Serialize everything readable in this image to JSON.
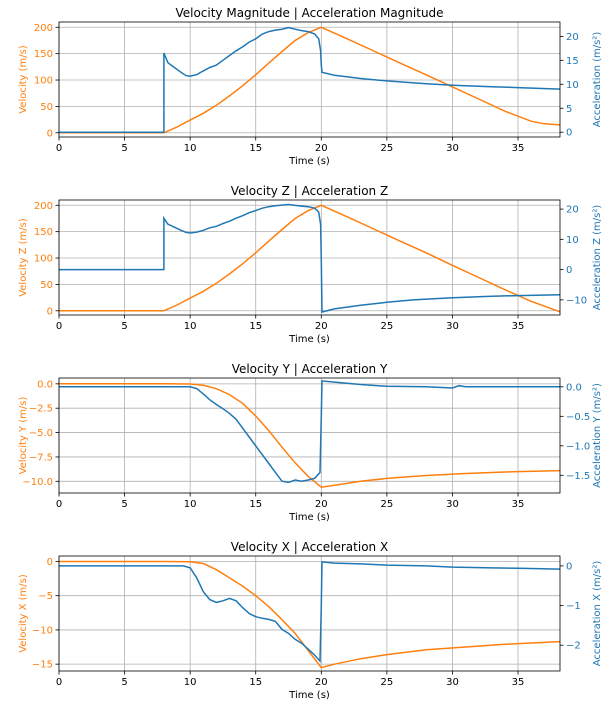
{
  "colors": {
    "velocity": "#ff7f0e",
    "acceleration": "#1f77b4",
    "grid": "#b0b0b0"
  },
  "chart_data": [
    {
      "type": "line",
      "title": "Velocity Magnitude | Acceleration Magnitude",
      "xlabel": "Time (s)",
      "ylabel_left": "Velocity (m/s)",
      "ylabel_right": "Acceleration (m/s²)",
      "xlim": [
        0,
        38.2
      ],
      "ylim_left": [
        -8,
        210
      ],
      "ylim_right": [
        -1,
        23
      ],
      "xticks": [
        0,
        5,
        10,
        15,
        20,
        25,
        30,
        35
      ],
      "yticks_left": [
        0,
        50,
        100,
        150,
        200
      ],
      "yticks_right": [
        0,
        5,
        10,
        15,
        20
      ],
      "grid": true,
      "series": [
        {
          "axis": "left",
          "points": [
            [
              0,
              0
            ],
            [
              8,
              0
            ],
            [
              9,
              11
            ],
            [
              10,
              24
            ],
            [
              11,
              37
            ],
            [
              12,
              52
            ],
            [
              13,
              70
            ],
            [
              14,
              89
            ],
            [
              15,
              110
            ],
            [
              16,
              132
            ],
            [
              17,
              154
            ],
            [
              18,
              175
            ],
            [
              19,
              190
            ],
            [
              20,
              200
            ],
            [
              22,
              178
            ],
            [
              24,
              155
            ],
            [
              26,
              132
            ],
            [
              28,
              110
            ],
            [
              30,
              87
            ],
            [
              32,
              64
            ],
            [
              34,
              41
            ],
            [
              36,
              22
            ],
            [
              37,
              17
            ],
            [
              38.2,
              15
            ]
          ]
        },
        {
          "axis": "right",
          "points": [
            [
              0,
              0
            ],
            [
              8,
              0
            ],
            [
              8,
              16.5
            ],
            [
              8.3,
              14.5
            ],
            [
              8.8,
              13.5
            ],
            [
              9.3,
              12.5
            ],
            [
              9.7,
              11.8
            ],
            [
              10,
              11.7
            ],
            [
              10.5,
              12
            ],
            [
              11,
              12.8
            ],
            [
              11.5,
              13.5
            ],
            [
              12,
              14
            ],
            [
              12.5,
              15
            ],
            [
              13,
              16
            ],
            [
              13.5,
              17
            ],
            [
              14,
              17.8
            ],
            [
              14.5,
              18.8
            ],
            [
              15,
              19.5
            ],
            [
              15.5,
              20.5
            ],
            [
              16,
              21
            ],
            [
              16.5,
              21.3
            ],
            [
              17,
              21.5
            ],
            [
              17.5,
              21.8
            ],
            [
              18,
              21.5
            ],
            [
              18.5,
              21.2
            ],
            [
              19,
              21
            ],
            [
              19.5,
              20.5
            ],
            [
              19.8,
              19.5
            ],
            [
              19.95,
              17
            ],
            [
              20,
              14
            ],
            [
              20.05,
              12.5
            ],
            [
              21,
              11.9
            ],
            [
              23,
              11.2
            ],
            [
              25,
              10.7
            ],
            [
              28,
              10.1
            ],
            [
              30,
              9.8
            ],
            [
              33,
              9.5
            ],
            [
              35,
              9.3
            ],
            [
              38.2,
              9
            ]
          ]
        }
      ]
    },
    {
      "type": "line",
      "title": "Velocity Z | Acceleration Z",
      "xlabel": "Time (s)",
      "ylabel_left": "Velocity Z (m/s)",
      "ylabel_right": "Acceleration Z (m/s²)",
      "xlim": [
        0,
        38.2
      ],
      "ylim_left": [
        -8,
        210
      ],
      "ylim_right": [
        -15,
        23
      ],
      "xticks": [
        0,
        5,
        10,
        15,
        20,
        25,
        30,
        35
      ],
      "yticks_left": [
        0,
        50,
        100,
        150,
        200
      ],
      "yticks_right": [
        -10,
        0,
        10,
        20
      ],
      "grid": true,
      "series": [
        {
          "axis": "left",
          "points": [
            [
              0,
              0
            ],
            [
              8,
              0
            ],
            [
              9,
              11
            ],
            [
              10,
              24
            ],
            [
              11,
              37
            ],
            [
              12,
              52
            ],
            [
              13,
              70
            ],
            [
              14,
              89
            ],
            [
              15,
              110
            ],
            [
              16,
              132
            ],
            [
              17,
              154
            ],
            [
              18,
              175
            ],
            [
              19,
              190
            ],
            [
              20,
              200
            ],
            [
              22,
              178
            ],
            [
              24,
              155
            ],
            [
              26,
              132
            ],
            [
              28,
              110
            ],
            [
              30,
              86
            ],
            [
              32,
              63
            ],
            [
              34,
              40
            ],
            [
              36,
              18
            ],
            [
              38.2,
              -2
            ]
          ]
        },
        {
          "axis": "right",
          "points": [
            [
              0,
              0
            ],
            [
              8,
              0
            ],
            [
              8,
              17
            ],
            [
              8.3,
              15
            ],
            [
              8.8,
              14
            ],
            [
              9.3,
              13
            ],
            [
              9.7,
              12.3
            ],
            [
              10,
              12.1
            ],
            [
              10.5,
              12.4
            ],
            [
              11,
              13
            ],
            [
              11.5,
              13.8
            ],
            [
              12,
              14.3
            ],
            [
              12.5,
              15.2
            ],
            [
              13,
              16
            ],
            [
              13.5,
              17
            ],
            [
              14,
              17.8
            ],
            [
              14.5,
              18.8
            ],
            [
              15,
              19.5
            ],
            [
              15.5,
              20.3
            ],
            [
              16,
              20.8
            ],
            [
              16.5,
              21.1
            ],
            [
              17,
              21.3
            ],
            [
              17.5,
              21.5
            ],
            [
              18,
              21.2
            ],
            [
              18.5,
              21
            ],
            [
              19,
              20.8
            ],
            [
              19.5,
              20.3
            ],
            [
              19.8,
              19
            ],
            [
              19.95,
              15
            ],
            [
              20,
              3
            ],
            [
              20.05,
              -14
            ],
            [
              21,
              -13
            ],
            [
              23,
              -11.8
            ],
            [
              25,
              -10.8
            ],
            [
              27,
              -10
            ],
            [
              30,
              -9.3
            ],
            [
              33,
              -8.8
            ],
            [
              35,
              -8.6
            ],
            [
              38.2,
              -8.3
            ]
          ]
        }
      ]
    },
    {
      "type": "line",
      "title": "Velocity Y | Acceleration Y",
      "xlabel": "Time (s)",
      "ylabel_left": "Velocity Y (m/s)",
      "ylabel_right": "Acceleration Y (m/s²)",
      "xlim": [
        0,
        38.2
      ],
      "ylim_left": [
        -11.2,
        0.6
      ],
      "ylim_right": [
        -1.8,
        0.15
      ],
      "xticks": [
        0,
        5,
        10,
        15,
        20,
        25,
        30,
        35
      ],
      "yticks_left": [
        0.0,
        -2.5,
        -5.0,
        -7.5,
        -10.0
      ],
      "yticks_right": [
        0.0,
        -0.5,
        -1.0,
        -1.5
      ],
      "grid": true,
      "series": [
        {
          "axis": "left",
          "points": [
            [
              0,
              0
            ],
            [
              8,
              0
            ],
            [
              10,
              -0.02
            ],
            [
              11,
              -0.15
            ],
            [
              12,
              -0.5
            ],
            [
              13,
              -1.1
            ],
            [
              14,
              -2
            ],
            [
              15,
              -3.3
            ],
            [
              16,
              -4.8
            ],
            [
              17,
              -6.5
            ],
            [
              18,
              -8.1
            ],
            [
              19,
              -9.5
            ],
            [
              20,
              -10.6
            ],
            [
              21,
              -10.4
            ],
            [
              23,
              -10
            ],
            [
              25,
              -9.7
            ],
            [
              28,
              -9.4
            ],
            [
              31,
              -9.2
            ],
            [
              34,
              -9.05
            ],
            [
              38.2,
              -8.9
            ]
          ]
        },
        {
          "axis": "right",
          "points": [
            [
              0,
              0
            ],
            [
              10,
              0
            ],
            [
              10.5,
              -0.03
            ],
            [
              11,
              -0.12
            ],
            [
              11.5,
              -0.22
            ],
            [
              12,
              -0.3
            ],
            [
              12.5,
              -0.37
            ],
            [
              13,
              -0.45
            ],
            [
              13.5,
              -0.55
            ],
            [
              14,
              -0.7
            ],
            [
              14.5,
              -0.85
            ],
            [
              15,
              -1
            ],
            [
              15.5,
              -1.15
            ],
            [
              16,
              -1.3
            ],
            [
              16.5,
              -1.45
            ],
            [
              17,
              -1.6
            ],
            [
              17.5,
              -1.62
            ],
            [
              18,
              -1.58
            ],
            [
              18.5,
              -1.6
            ],
            [
              19,
              -1.58
            ],
            [
              19.5,
              -1.55
            ],
            [
              19.9,
              -1.45
            ],
            [
              20,
              -0.5
            ],
            [
              20.05,
              0.1
            ],
            [
              21,
              0.08
            ],
            [
              23,
              0.04
            ],
            [
              25,
              0.01
            ],
            [
              28,
              0
            ],
            [
              30,
              -0.02
            ],
            [
              30.5,
              0.02
            ],
            [
              31,
              0
            ],
            [
              33,
              0
            ],
            [
              35,
              0
            ],
            [
              38.2,
              0
            ]
          ]
        }
      ]
    },
    {
      "type": "line",
      "title": "Velocity X | Acceleration X",
      "xlabel": "Time (s)",
      "ylabel_left": "Velocity X (m/s)",
      "ylabel_right": "Acceleration X (m/s²)",
      "xlim": [
        0,
        38.2
      ],
      "ylim_left": [
        -16,
        0.8
      ],
      "ylim_right": [
        -2.65,
        0.25
      ],
      "xticks": [
        0,
        5,
        10,
        15,
        20,
        25,
        30,
        35
      ],
      "yticks_left": [
        0,
        -5,
        -10,
        -15
      ],
      "yticks_right": [
        0,
        -1,
        -2
      ],
      "grid": true,
      "series": [
        {
          "axis": "left",
          "points": [
            [
              0,
              0
            ],
            [
              8,
              0
            ],
            [
              10,
              -0.03
            ],
            [
              11,
              -0.3
            ],
            [
              12,
              -1.2
            ],
            [
              13,
              -2.4
            ],
            [
              14,
              -3.6
            ],
            [
              15,
              -5
            ],
            [
              16,
              -6.6
            ],
            [
              17,
              -8.5
            ],
            [
              18,
              -10.5
            ],
            [
              19,
              -13
            ],
            [
              20,
              -15.5
            ],
            [
              21,
              -15
            ],
            [
              23,
              -14.2
            ],
            [
              25,
              -13.6
            ],
            [
              28,
              -12.9
            ],
            [
              31,
              -12.5
            ],
            [
              34,
              -12.1
            ],
            [
              38.2,
              -11.7
            ]
          ]
        },
        {
          "axis": "right",
          "points": [
            [
              0,
              0
            ],
            [
              9.5,
              0
            ],
            [
              10,
              -0.05
            ],
            [
              10.5,
              -0.3
            ],
            [
              11,
              -0.65
            ],
            [
              11.5,
              -0.85
            ],
            [
              12,
              -0.92
            ],
            [
              12.5,
              -0.88
            ],
            [
              13,
              -0.82
            ],
            [
              13.5,
              -0.88
            ],
            [
              14,
              -1.05
            ],
            [
              14.5,
              -1.2
            ],
            [
              15,
              -1.28
            ],
            [
              15.5,
              -1.32
            ],
            [
              16,
              -1.35
            ],
            [
              16.5,
              -1.4
            ],
            [
              17,
              -1.6
            ],
            [
              17.5,
              -1.7
            ],
            [
              18,
              -1.85
            ],
            [
              18.5,
              -1.95
            ],
            [
              19,
              -2.1
            ],
            [
              19.5,
              -2.25
            ],
            [
              19.9,
              -2.4
            ],
            [
              20,
              -1
            ],
            [
              20.05,
              0.1
            ],
            [
              21,
              0.07
            ],
            [
              23,
              0.05
            ],
            [
              25,
              0.02
            ],
            [
              28,
              0
            ],
            [
              30,
              -0.03
            ],
            [
              33,
              -0.05
            ],
            [
              35,
              -0.06
            ],
            [
              38.2,
              -0.08
            ]
          ]
        }
      ]
    }
  ]
}
